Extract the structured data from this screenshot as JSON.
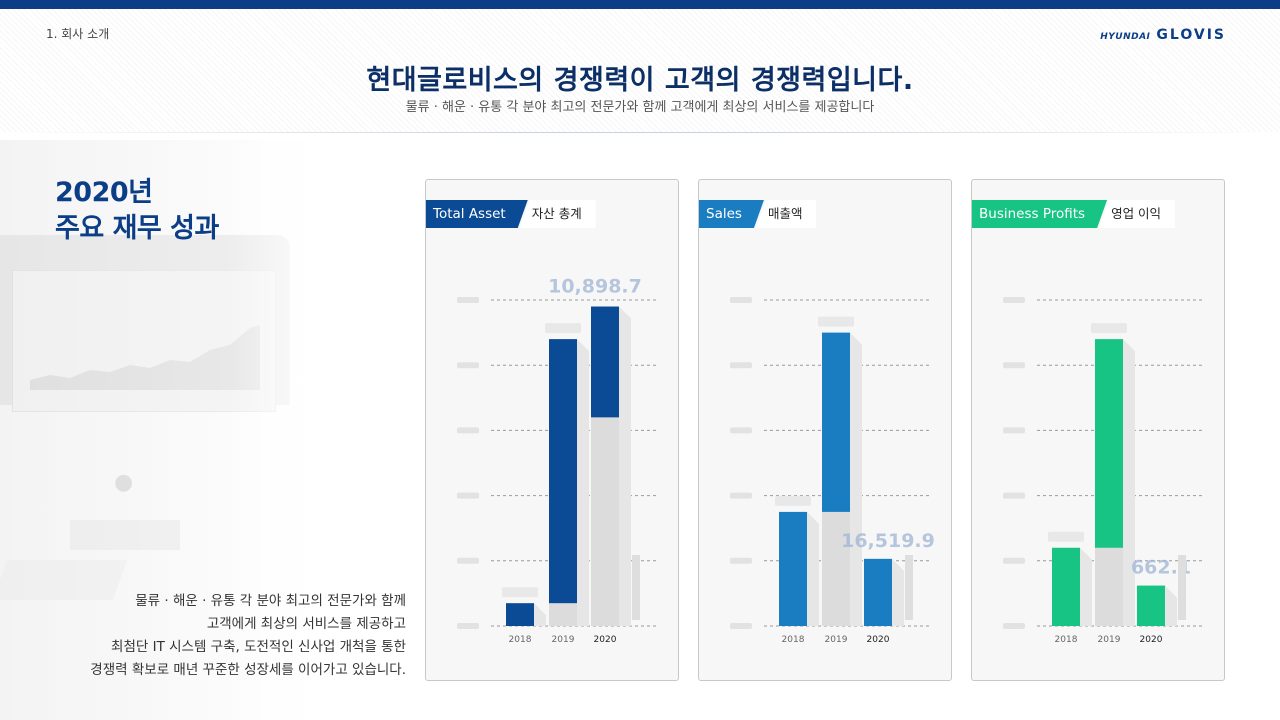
{
  "header": {
    "section": "1. 회사 소개",
    "logo_small": "HYUNDAI",
    "logo_big": "GLOVIS",
    "title": "현대글로비스의 경쟁력이 고객의 경쟁력입니다.",
    "subtitle": "물류 · 해운  ·  유통 각 분야 최고의 전문가와 함께 고객에게 최상의 서비스를 제공합니다"
  },
  "left": {
    "headline_line1": "2020년",
    "headline_line2": "주요 재무 성과",
    "desc_lines": [
      "물류 · 해운 · 유통  각 분야 최고의 전문가와  함께",
      "고객에게 최상의 서비스를 제공하고",
      "최첨단 IT 시스템 구축, 도전적인 신사업 개척을 통한",
      "경쟁력 확보로 매년 꾸준한 성장세를 이어가고 있습니다."
    ]
  },
  "colors": {
    "brand": "#0b3e87",
    "total_asset": "#0b4a94",
    "sales": "#1a7cc1",
    "profit": "#17c484",
    "ghost": "#dcdcdc"
  },
  "chart_data": [
    {
      "type": "bar",
      "label": "Total Asset",
      "sublabel": "자산 총계",
      "color": "#0b4a94",
      "categories": [
        "2018",
        "2019",
        "2020"
      ],
      "values": [
        0.35,
        4.4,
        4.9
      ],
      "ghost": [
        null,
        0.35,
        3.2
      ],
      "value_label": "10,898.7",
      "ylim": [
        0,
        5
      ]
    },
    {
      "type": "bar",
      "label": "Sales",
      "sublabel": "매출액",
      "color": "#1a7cc1",
      "categories": [
        "2018",
        "2019",
        "2020"
      ],
      "values": [
        1.75,
        4.5,
        1.03
      ],
      "ghost": [
        null,
        1.75,
        null
      ],
      "value_label": "16,519.9",
      "ylim": [
        0,
        5
      ]
    },
    {
      "type": "bar",
      "label": "Business Profits",
      "sublabel": "영업 이익",
      "color": "#17c484",
      "categories": [
        "2018",
        "2019",
        "2020"
      ],
      "values": [
        1.2,
        4.4,
        0.62
      ],
      "ghost": [
        null,
        1.2,
        null
      ],
      "value_label": "662.1",
      "ylim": [
        0,
        5
      ]
    }
  ]
}
